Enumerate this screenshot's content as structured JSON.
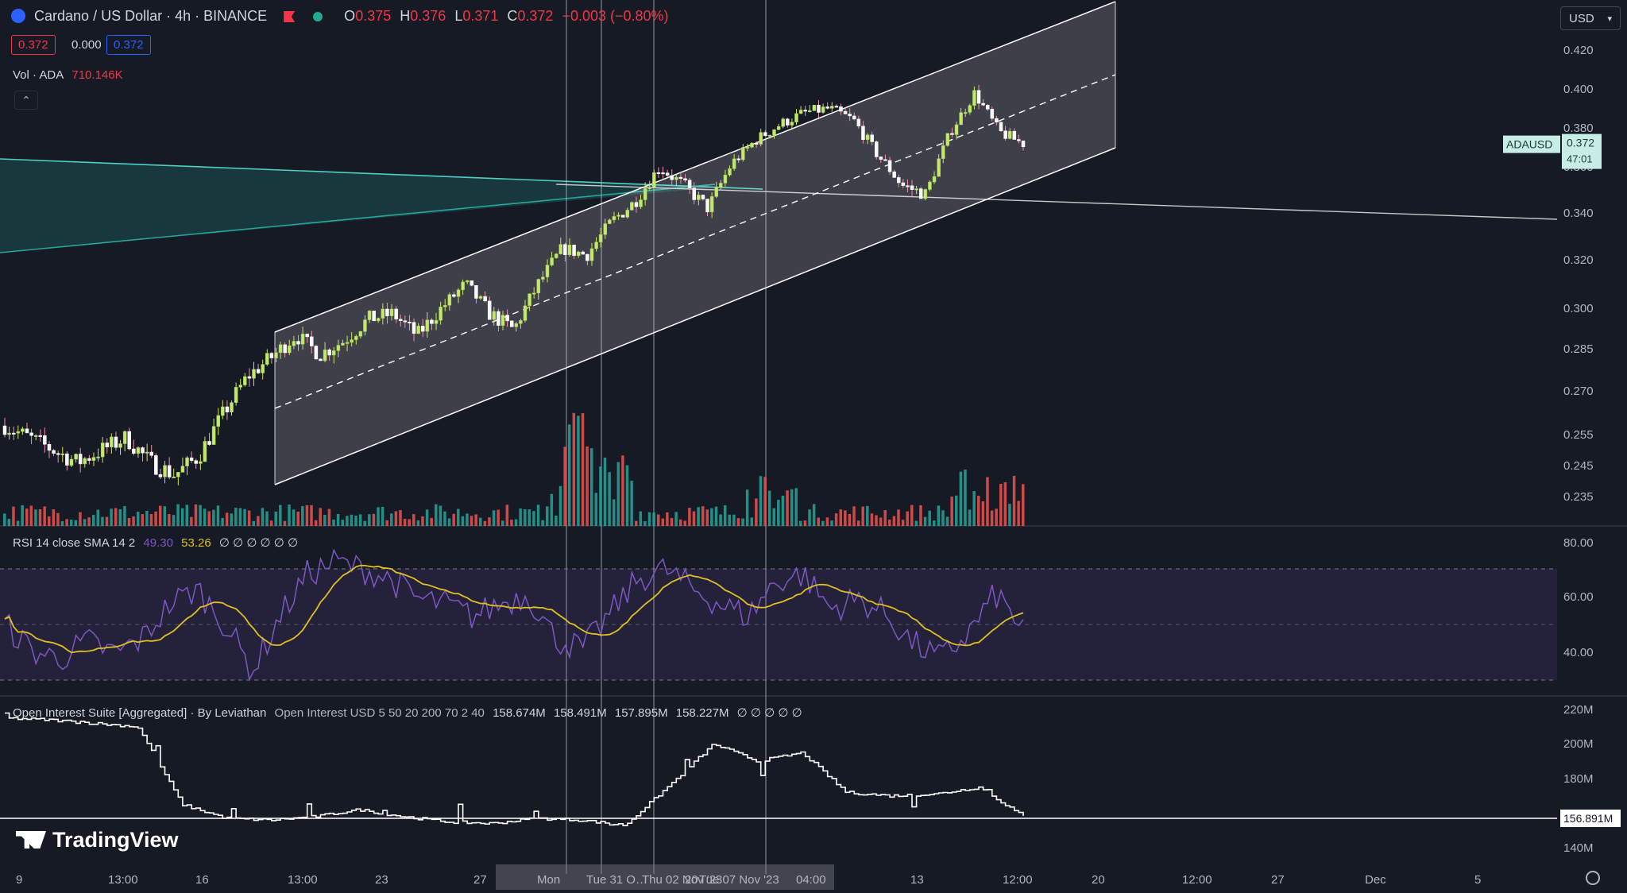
{
  "header": {
    "symbol": "Cardano / US Dollar · 4h · BINANCE",
    "open_label": "O",
    "open": "0.375",
    "high_label": "H",
    "high": "0.376",
    "low_label": "L",
    "low": "0.371",
    "close_label": "C",
    "close": "0.372",
    "change": "−0.003 (−0.80%)",
    "bid": "0.372",
    "spread": "0.000",
    "ask": "0.372",
    "volume_label": "Vol · ADA",
    "volume_value": "710.146K"
  },
  "currency": "USD",
  "price_tag": {
    "symbol": "ADAUSD",
    "price": "0.372",
    "countdown": "47:01"
  },
  "oi_tag": "156.891M",
  "logo": "TradingView",
  "rsi": {
    "title": "RSI 14 close SMA 14 2",
    "value": "49.30",
    "sma": "53.26",
    "extra": "∅ ∅ ∅ ∅ ∅ ∅",
    "levels": [
      "80.00",
      "60.00",
      "40.00"
    ]
  },
  "oi": {
    "title": "Open Interest Suite [Aggregated] · By Leviathan",
    "params": "Open Interest USD 5 50 20 200 70 2 40",
    "values": [
      "158.674M",
      "158.491M",
      "157.895M",
      "158.227M"
    ],
    "extra": "∅ ∅ ∅ ∅ ∅",
    "levels": [
      "220M",
      "200M",
      "180M",
      "160M",
      "140M"
    ]
  },
  "colors": {
    "up": "#26a69a",
    "down": "#ef5350",
    "bg": "#161a25",
    "rsi": "#7e57c2",
    "sma": "#e0c020"
  },
  "chart_data": {
    "type": "candlestick",
    "y_ticks": [
      "0.420",
      "0.400",
      "0.380",
      "0.360",
      "0.340",
      "0.320",
      "0.300",
      "0.285",
      "0.270",
      "0.255",
      "0.245",
      "0.235"
    ],
    "x_ticks": [
      "9",
      "13:00",
      "16",
      "13:00",
      "23",
      "27",
      "Mon",
      "Tue 31 O…",
      "Thu 02 Nov '23",
      "20",
      "Tue 07 Nov '23",
      "04:00",
      "13",
      "12:00",
      "20",
      "12:00",
      "27",
      "Dec",
      "5"
    ],
    "close_anchors": [
      0.258,
      0.254,
      0.25,
      0.246,
      0.25,
      0.254,
      0.246,
      0.242,
      0.248,
      0.262,
      0.275,
      0.282,
      0.29,
      0.283,
      0.288,
      0.296,
      0.298,
      0.29,
      0.3,
      0.31,
      0.298,
      0.292,
      0.31,
      0.325,
      0.322,
      0.336,
      0.345,
      0.36,
      0.352,
      0.342,
      0.362,
      0.374,
      0.382,
      0.388,
      0.39,
      0.384,
      0.366,
      0.352,
      0.348,
      0.378,
      0.398,
      0.378,
      0.372
    ],
    "channel": {
      "start": [
        "13:00",
        "16"
      ],
      "end": [
        "20",
        "11 Nov"
      ],
      "upper": [
        0.29,
        0.438
      ],
      "lower": [
        0.24,
        0.36
      ]
    },
    "rsi_anchors": [
      52,
      41,
      38,
      45,
      40,
      46,
      60,
      66,
      52,
      33,
      55,
      72,
      77,
      74,
      70,
      62,
      60,
      55,
      60,
      64,
      46,
      42,
      56,
      70,
      74,
      66,
      60,
      55,
      69,
      72,
      58,
      62,
      56,
      44,
      38,
      48,
      64,
      50
    ],
    "oi_anchors_millions": [
      215,
      214,
      212,
      210,
      165,
      157,
      156,
      158,
      162,
      158,
      155,
      154,
      157,
      156,
      153,
      176,
      200,
      190,
      195,
      172,
      170,
      171,
      175,
      158
    ]
  }
}
